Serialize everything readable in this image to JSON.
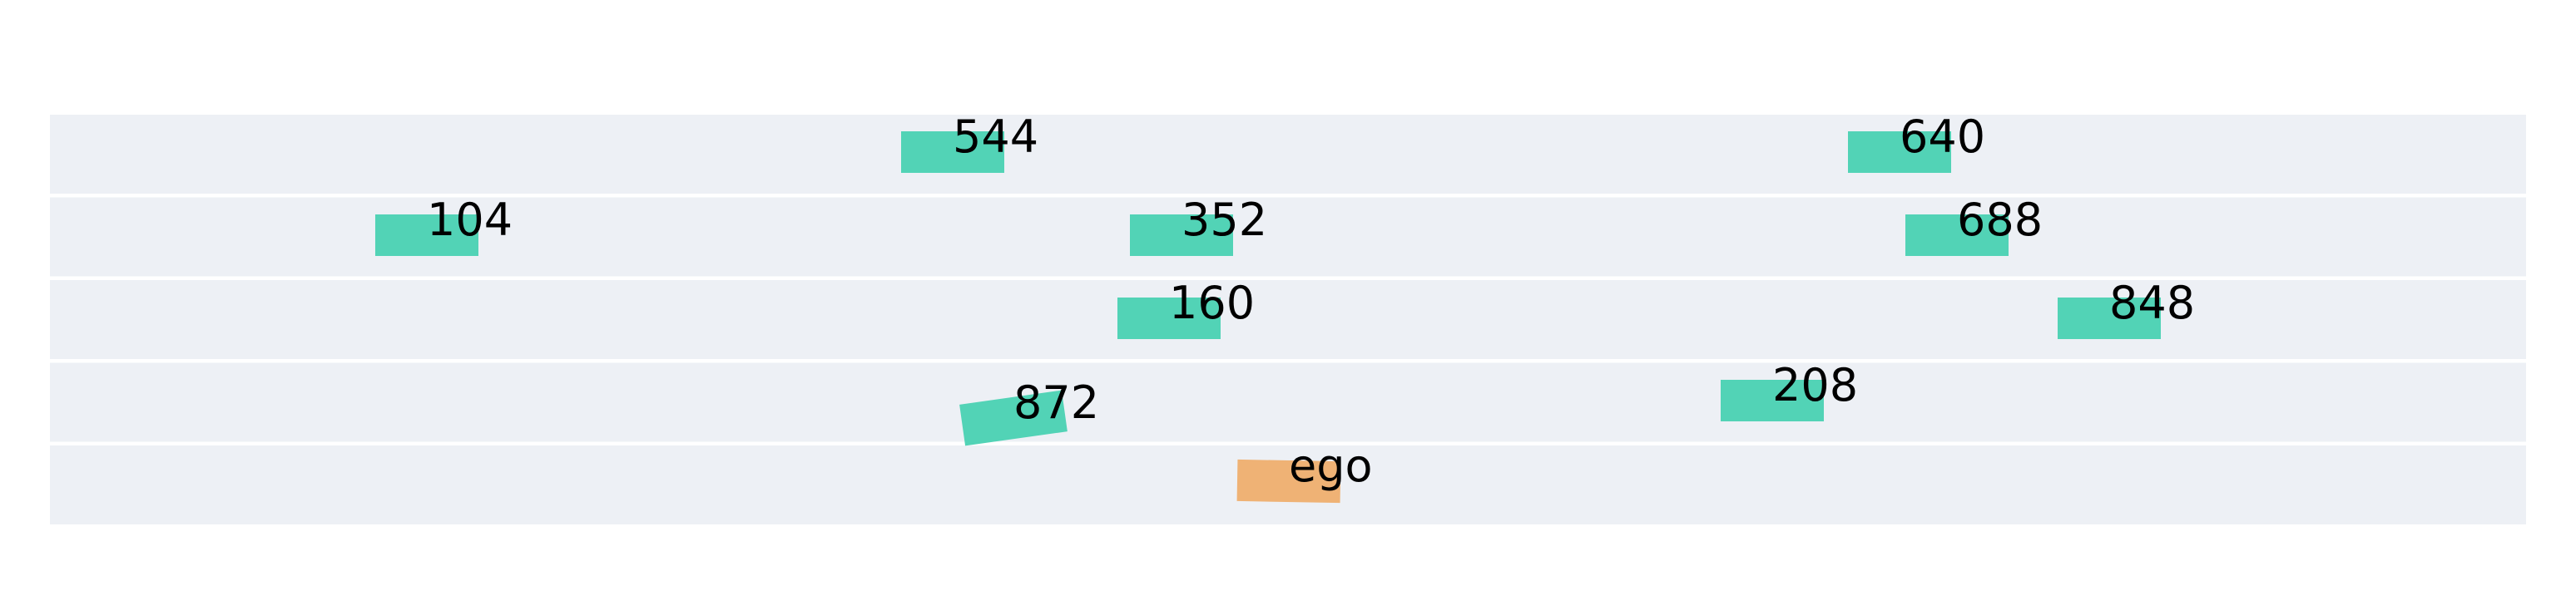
{
  "scene": {
    "background_color": "#ffffff",
    "lane_color": "#edf0f5",
    "lane_count": 5,
    "vehicle_colors": {
      "other": "#52d3b6",
      "ego": "#efb275"
    },
    "vehicles": [
      {
        "label": "544",
        "type": "other",
        "lane": 0
      },
      {
        "label": "640",
        "type": "other",
        "lane": 0
      },
      {
        "label": "104",
        "type": "other",
        "lane": 1
      },
      {
        "label": "352",
        "type": "other",
        "lane": 1
      },
      {
        "label": "688",
        "type": "other",
        "lane": 1
      },
      {
        "label": "160",
        "type": "other",
        "lane": 2
      },
      {
        "label": "848",
        "type": "other",
        "lane": 2
      },
      {
        "label": "872",
        "type": "other",
        "lane": 3
      },
      {
        "label": "208",
        "type": "other",
        "lane": 3
      },
      {
        "label": "ego",
        "type": "ego",
        "lane": 4
      }
    ]
  }
}
